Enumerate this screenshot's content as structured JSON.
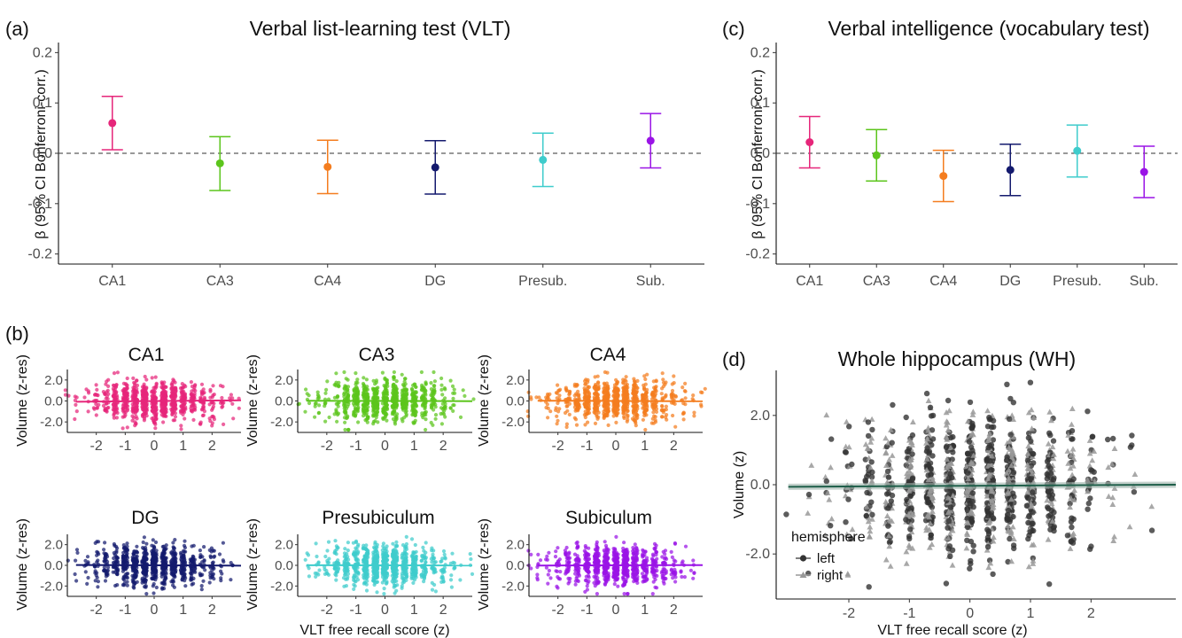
{
  "chart_data": [
    {
      "id": "a",
      "panel_label": "(a)",
      "type": "scatter",
      "title": "Verbal list-learning test (VLT)",
      "ylabel": "β (95% CI Bonferroni-corr.)",
      "xlabel": "",
      "ylim": [
        -0.22,
        0.22
      ],
      "yticks": [
        0.2,
        0.1,
        0.0,
        -0.1,
        -0.2
      ],
      "ytick_labels": [
        "0.2",
        "0.1",
        "0.0",
        "-0.1",
        "-0.2"
      ],
      "grid": false,
      "reference_line": 0,
      "categories": [
        "CA1",
        "CA3",
        "CA4",
        "DG",
        "Presub.",
        "Sub."
      ],
      "estimates": [
        0.06,
        -0.02,
        -0.027,
        -0.028,
        -0.013,
        0.025
      ],
      "ci_low": [
        0.007,
        -0.074,
        -0.08,
        -0.081,
        -0.066,
        -0.029
      ],
      "ci_high": [
        0.113,
        0.033,
        0.026,
        0.025,
        0.04,
        0.079
      ],
      "colors": [
        "#e6267a",
        "#5cc51c",
        "#f47d1f",
        "#141a6e",
        "#3fcccc",
        "#9a14e6"
      ]
    },
    {
      "id": "c",
      "panel_label": "(c)",
      "type": "scatter",
      "title": "Verbal intelligence (vocabulary test)",
      "ylabel": "β (95% CI Bonferroni-corr.)",
      "xlabel": "",
      "ylim": [
        -0.22,
        0.22
      ],
      "yticks": [
        0.2,
        0.1,
        0.0,
        -0.1,
        -0.2
      ],
      "ytick_labels": [
        "0.2",
        "0.1",
        "0.0",
        "-0.1",
        "-0.2"
      ],
      "grid": false,
      "reference_line": 0,
      "categories": [
        "CA1",
        "CA3",
        "CA4",
        "DG",
        "Presub.",
        "Sub."
      ],
      "estimates": [
        0.022,
        -0.004,
        -0.045,
        -0.033,
        0.005,
        -0.037
      ],
      "ci_low": [
        -0.029,
        -0.055,
        -0.096,
        -0.084,
        -0.047,
        -0.088
      ],
      "ci_high": [
        0.073,
        0.047,
        0.006,
        0.018,
        0.056,
        0.014
      ],
      "colors": [
        "#e6267a",
        "#5cc51c",
        "#f47d1f",
        "#141a6e",
        "#3fcccc",
        "#9a14e6"
      ]
    },
    {
      "id": "b",
      "panel_label": "(b)",
      "type": "scatter",
      "ylabel": "Volume (z-res)",
      "xlabel": "VLT free recall score (z)",
      "xlim": [
        -3,
        3
      ],
      "ylim": [
        -3,
        3
      ],
      "xticks": [
        -2,
        -1,
        0,
        1,
        2
      ],
      "xtick_labels": [
        "-2",
        "-1",
        "0",
        "1",
        "2"
      ],
      "yticks": [
        2,
        0,
        -2
      ],
      "ytick_labels": [
        "2.0",
        "0.0",
        "-2.0"
      ],
      "grid": false,
      "subplots": [
        {
          "title": "CA1",
          "color": "#e6267a",
          "fit": [
            -0.07,
            0.06
          ]
        },
        {
          "title": "CA3",
          "color": "#5cc51c",
          "fit": [
            0.02,
            -0.02
          ]
        },
        {
          "title": "CA4",
          "color": "#f47d1f",
          "fit": [
            0.025,
            -0.025
          ]
        },
        {
          "title": "DG",
          "color": "#141a6e",
          "fit": [
            0.03,
            -0.03
          ]
        },
        {
          "title": "Presubiculum",
          "color": "#3fcccc",
          "fit": [
            0.01,
            -0.013
          ]
        },
        {
          "title": "Subiculum",
          "color": "#9a14e6",
          "fit": [
            -0.02,
            0.025
          ]
        }
      ]
    },
    {
      "id": "d",
      "panel_label": "(d)",
      "type": "scatter",
      "title": "Whole hippocampus (WH)",
      "ylabel": "Volume (z)",
      "xlabel": "VLT free recall score (z)",
      "xlim": [
        -3.2,
        3.4
      ],
      "ylim": [
        -3.3,
        3.3
      ],
      "xticks": [
        -2,
        -1,
        0,
        1,
        2
      ],
      "xtick_labels": [
        "-2",
        "-1",
        "0",
        "1",
        "2"
      ],
      "yticks": [
        2,
        0,
        -2
      ],
      "ytick_labels": [
        "2.0",
        "0.0",
        "-2.0"
      ],
      "grid": false,
      "fit": [
        -0.06,
        0.0
      ],
      "fit_color": "#1f5f4a",
      "band_color": "#9db3aa",
      "legend": {
        "title": "hemisphere",
        "placement": "bottom-left",
        "entries": [
          {
            "label": "left",
            "shape": "circle"
          },
          {
            "label": "right",
            "shape": "triangle"
          }
        ]
      }
    }
  ]
}
